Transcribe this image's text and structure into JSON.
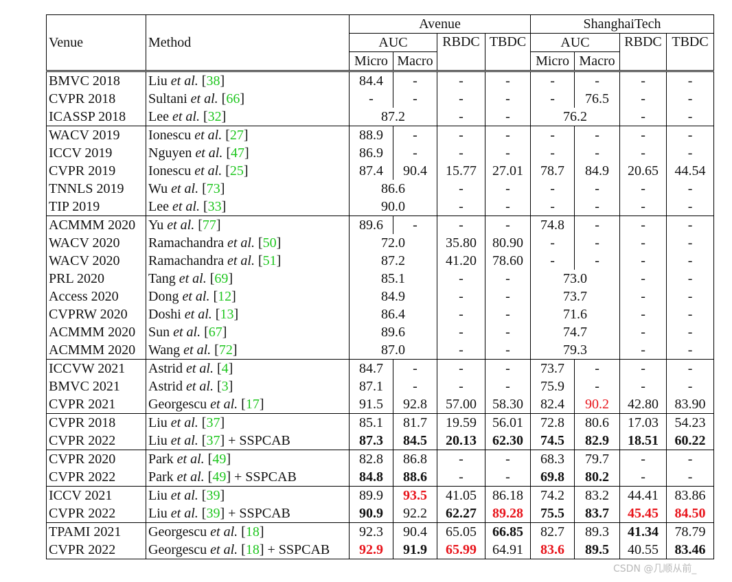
{
  "header": {
    "venue": "Venue",
    "method": "Method",
    "avenue": "Avenue",
    "shanghai": "ShanghaiTech",
    "auc": "AUC",
    "rbdc": "RBDC",
    "tbdc": "TBDC",
    "micro": "Micro",
    "macro": "Macro"
  },
  "rows": [
    {
      "venue": "BMVC 2018",
      "author": "Liu",
      "ref": "38",
      "suffix": "",
      "cells": [
        [
          "84.4"
        ],
        [
          "-"
        ],
        [
          "-"
        ],
        [
          "-"
        ],
        [
          "-"
        ],
        [
          "-"
        ],
        [
          "-"
        ],
        [
          "-"
        ]
      ]
    },
    {
      "venue": "CVPR 2018",
      "author": "Sultani",
      "ref": "66",
      "suffix": "",
      "cells": [
        [
          "-"
        ],
        [
          "-"
        ],
        [
          "-"
        ],
        [
          "-"
        ],
        [
          "-"
        ],
        [
          "76.5"
        ],
        [
          "-"
        ],
        [
          "-"
        ]
      ]
    },
    {
      "venue": "ICASSP 2018",
      "author": "Lee",
      "ref": "32",
      "suffix": "",
      "cells": [
        [
          "87.2",
          "",
          2
        ],
        [
          "-"
        ],
        [
          "-"
        ],
        [
          "76.2",
          "",
          2
        ],
        [
          "-"
        ],
        [
          "-"
        ]
      ]
    },
    {
      "venue": "WACV 2019",
      "author": "Ionescu",
      "ref": "27",
      "suffix": "",
      "cells": [
        [
          "88.9"
        ],
        [
          "-"
        ],
        [
          "-"
        ],
        [
          "-"
        ],
        [
          "-"
        ],
        [
          "-"
        ],
        [
          "-"
        ],
        [
          "-"
        ]
      ]
    },
    {
      "venue": "ICCV 2019",
      "author": "Nguyen",
      "ref": "47",
      "suffix": "",
      "cells": [
        [
          "86.9"
        ],
        [
          "-"
        ],
        [
          "-"
        ],
        [
          "-"
        ],
        [
          "-"
        ],
        [
          "-"
        ],
        [
          "-"
        ],
        [
          "-"
        ]
      ]
    },
    {
      "venue": "CVPR 2019",
      "author": "Ionescu",
      "ref": "25",
      "suffix": "",
      "cells": [
        [
          "87.4"
        ],
        [
          "90.4"
        ],
        [
          "15.77"
        ],
        [
          "27.01"
        ],
        [
          "78.7"
        ],
        [
          "84.9"
        ],
        [
          "20.65"
        ],
        [
          "44.54"
        ]
      ]
    },
    {
      "venue": "TNNLS 2019",
      "author": "Wu",
      "ref": "73",
      "suffix": "",
      "cells": [
        [
          "86.6",
          "",
          2
        ],
        [
          "-"
        ],
        [
          "-"
        ],
        [
          "-"
        ],
        [
          "-"
        ],
        [
          "-"
        ],
        [
          "-"
        ]
      ]
    },
    {
      "venue": "TIP 2019",
      "author": "Lee",
      "ref": "33",
      "suffix": "",
      "cells": [
        [
          "90.0",
          "",
          2
        ],
        [
          "-"
        ],
        [
          "-"
        ],
        [
          "-"
        ],
        [
          "-"
        ],
        [
          "-"
        ],
        [
          "-"
        ]
      ]
    },
    {
      "venue": "ACMMM 2020",
      "author": "Yu",
      "ref": "77",
      "suffix": "",
      "cells": [
        [
          "89.6"
        ],
        [
          "-"
        ],
        [
          "-"
        ],
        [
          "-"
        ],
        [
          "74.8"
        ],
        [
          "-"
        ],
        [
          "-"
        ],
        [
          "-"
        ]
      ]
    },
    {
      "venue": "WACV 2020",
      "author": "Ramachandra",
      "ref": "50",
      "suffix": "",
      "cells": [
        [
          "72.0",
          "",
          2
        ],
        [
          "35.80"
        ],
        [
          "80.90"
        ],
        [
          "-"
        ],
        [
          "-"
        ],
        [
          "-"
        ],
        [
          "-"
        ]
      ]
    },
    {
      "venue": "WACV 2020",
      "author": "Ramachandra",
      "ref": "51",
      "suffix": "",
      "cells": [
        [
          "87.2",
          "",
          2
        ],
        [
          "41.20"
        ],
        [
          "78.60"
        ],
        [
          "-"
        ],
        [
          "-"
        ],
        [
          "-"
        ],
        [
          "-"
        ]
      ]
    },
    {
      "venue": "PRL 2020",
      "author": "Tang",
      "ref": "69",
      "suffix": "",
      "cells": [
        [
          "85.1",
          "",
          2
        ],
        [
          "-"
        ],
        [
          "-"
        ],
        [
          "73.0",
          "",
          2
        ],
        [
          "-"
        ],
        [
          "-"
        ]
      ]
    },
    {
      "venue": "Access 2020",
      "author": "Dong",
      "ref": "12",
      "suffix": "",
      "cells": [
        [
          "84.9",
          "",
          2
        ],
        [
          "-"
        ],
        [
          "-"
        ],
        [
          "73.7",
          "",
          2
        ],
        [
          "-"
        ],
        [
          "-"
        ]
      ]
    },
    {
      "venue": "CVPRW 2020",
      "author": "Doshi",
      "ref": "13",
      "suffix": "",
      "cells": [
        [
          "86.4",
          "",
          2
        ],
        [
          "-"
        ],
        [
          "-"
        ],
        [
          "71.6",
          "",
          2
        ],
        [
          "-"
        ],
        [
          "-"
        ]
      ]
    },
    {
      "venue": "ACMMM 2020",
      "author": "Sun",
      "ref": "67",
      "suffix": "",
      "cells": [
        [
          "89.6",
          "",
          2
        ],
        [
          "-"
        ],
        [
          "-"
        ],
        [
          "74.7",
          "",
          2
        ],
        [
          "-"
        ],
        [
          "-"
        ]
      ]
    },
    {
      "venue": "ACMMM 2020",
      "author": "Wang",
      "ref": "72",
      "suffix": "",
      "cells": [
        [
          "87.0",
          "",
          2
        ],
        [
          "-"
        ],
        [
          "-"
        ],
        [
          "79.3",
          "",
          2
        ],
        [
          "-"
        ],
        [
          "-"
        ]
      ]
    },
    {
      "venue": "ICCVW 2021",
      "author": "Astrid",
      "ref": "4",
      "suffix": "",
      "cells": [
        [
          "84.7"
        ],
        [
          "-"
        ],
        [
          "-"
        ],
        [
          "-"
        ],
        [
          "73.7"
        ],
        [
          "-"
        ],
        [
          "-"
        ],
        [
          "-"
        ]
      ]
    },
    {
      "venue": "BMVC 2021",
      "author": "Astrid",
      "ref": "3",
      "suffix": "",
      "cells": [
        [
          "87.1"
        ],
        [
          "-"
        ],
        [
          "-"
        ],
        [
          "-"
        ],
        [
          "75.9"
        ],
        [
          "-"
        ],
        [
          "-"
        ],
        [
          "-"
        ]
      ]
    },
    {
      "venue": "CVPR 2021",
      "author": "Georgescu",
      "ref": "17",
      "suffix": "",
      "cells": [
        [
          "91.5"
        ],
        [
          "92.8"
        ],
        [
          "57.00"
        ],
        [
          "58.30"
        ],
        [
          "82.4"
        ],
        [
          "90.2",
          "r"
        ],
        [
          "42.80"
        ],
        [
          "83.90"
        ]
      ]
    },
    {
      "venue": "CVPR 2018",
      "author": "Liu",
      "ref": "37",
      "suffix": "",
      "cells": [
        [
          "85.1"
        ],
        [
          "81.7"
        ],
        [
          "19.59"
        ],
        [
          "56.01"
        ],
        [
          "72.8"
        ],
        [
          "80.6"
        ],
        [
          "17.03"
        ],
        [
          "54.23"
        ]
      ]
    },
    {
      "venue": "CVPR 2022",
      "author": "Liu",
      "ref": "37",
      "suffix": " + SSPCAB",
      "cells": [
        [
          "87.3",
          "b"
        ],
        [
          "84.5",
          "b"
        ],
        [
          "20.13",
          "b"
        ],
        [
          "62.30",
          "b"
        ],
        [
          "74.5",
          "b"
        ],
        [
          "82.9",
          "b"
        ],
        [
          "18.51",
          "b"
        ],
        [
          "60.22",
          "b"
        ]
      ]
    },
    {
      "venue": "CVPR 2020",
      "author": "Park",
      "ref": "49",
      "suffix": "",
      "cells": [
        [
          "82.8"
        ],
        [
          "86.8"
        ],
        [
          "-"
        ],
        [
          "-"
        ],
        [
          "68.3"
        ],
        [
          "79.7"
        ],
        [
          "-"
        ],
        [
          "-"
        ]
      ]
    },
    {
      "venue": "CVPR 2022",
      "author": "Park",
      "ref": "49",
      "suffix": " + SSPCAB",
      "cells": [
        [
          "84.8",
          "b"
        ],
        [
          "88.6",
          "b"
        ],
        [
          "-"
        ],
        [
          "-"
        ],
        [
          "69.8",
          "b"
        ],
        [
          "80.2",
          "b"
        ],
        [
          "-"
        ],
        [
          "-"
        ]
      ]
    },
    {
      "venue": "ICCV 2021",
      "author": "Liu",
      "ref": "39",
      "suffix": "",
      "cells": [
        [
          "89.9"
        ],
        [
          "93.5",
          "br"
        ],
        [
          "41.05"
        ],
        [
          "86.18"
        ],
        [
          "74.2"
        ],
        [
          "83.2"
        ],
        [
          "44.41"
        ],
        [
          "83.86"
        ]
      ]
    },
    {
      "venue": "CVPR 2022",
      "author": "Liu",
      "ref": "39",
      "suffix": " + SSPCAB",
      "cells": [
        [
          "90.9",
          "b"
        ],
        [
          "92.2"
        ],
        [
          "62.27",
          "b"
        ],
        [
          "89.28",
          "br"
        ],
        [
          "75.5",
          "b"
        ],
        [
          "83.7",
          "b"
        ],
        [
          "45.45",
          "br"
        ],
        [
          "84.50",
          "br"
        ]
      ]
    },
    {
      "venue": "TPAMI 2021",
      "author": "Georgescu",
      "ref": "18",
      "suffix": "",
      "cells": [
        [
          "92.3"
        ],
        [
          "90.4"
        ],
        [
          "65.05"
        ],
        [
          "66.85",
          "b"
        ],
        [
          "82.7"
        ],
        [
          "89.3"
        ],
        [
          "41.34",
          "b"
        ],
        [
          "78.79"
        ]
      ]
    },
    {
      "venue": "CVPR 2022",
      "author": "Georgescu",
      "ref": "18",
      "suffix": " + SSPCAB",
      "cells": [
        [
          "92.9",
          "br"
        ],
        [
          "91.9",
          "b"
        ],
        [
          "65.99",
          "br"
        ],
        [
          "64.91"
        ],
        [
          "83.6",
          "br"
        ],
        [
          "89.5",
          "b"
        ],
        [
          "40.55"
        ],
        [
          "83.46",
          "b"
        ]
      ]
    }
  ],
  "etal": "et al.",
  "watermark": "CSDN @几顺从前_"
}
